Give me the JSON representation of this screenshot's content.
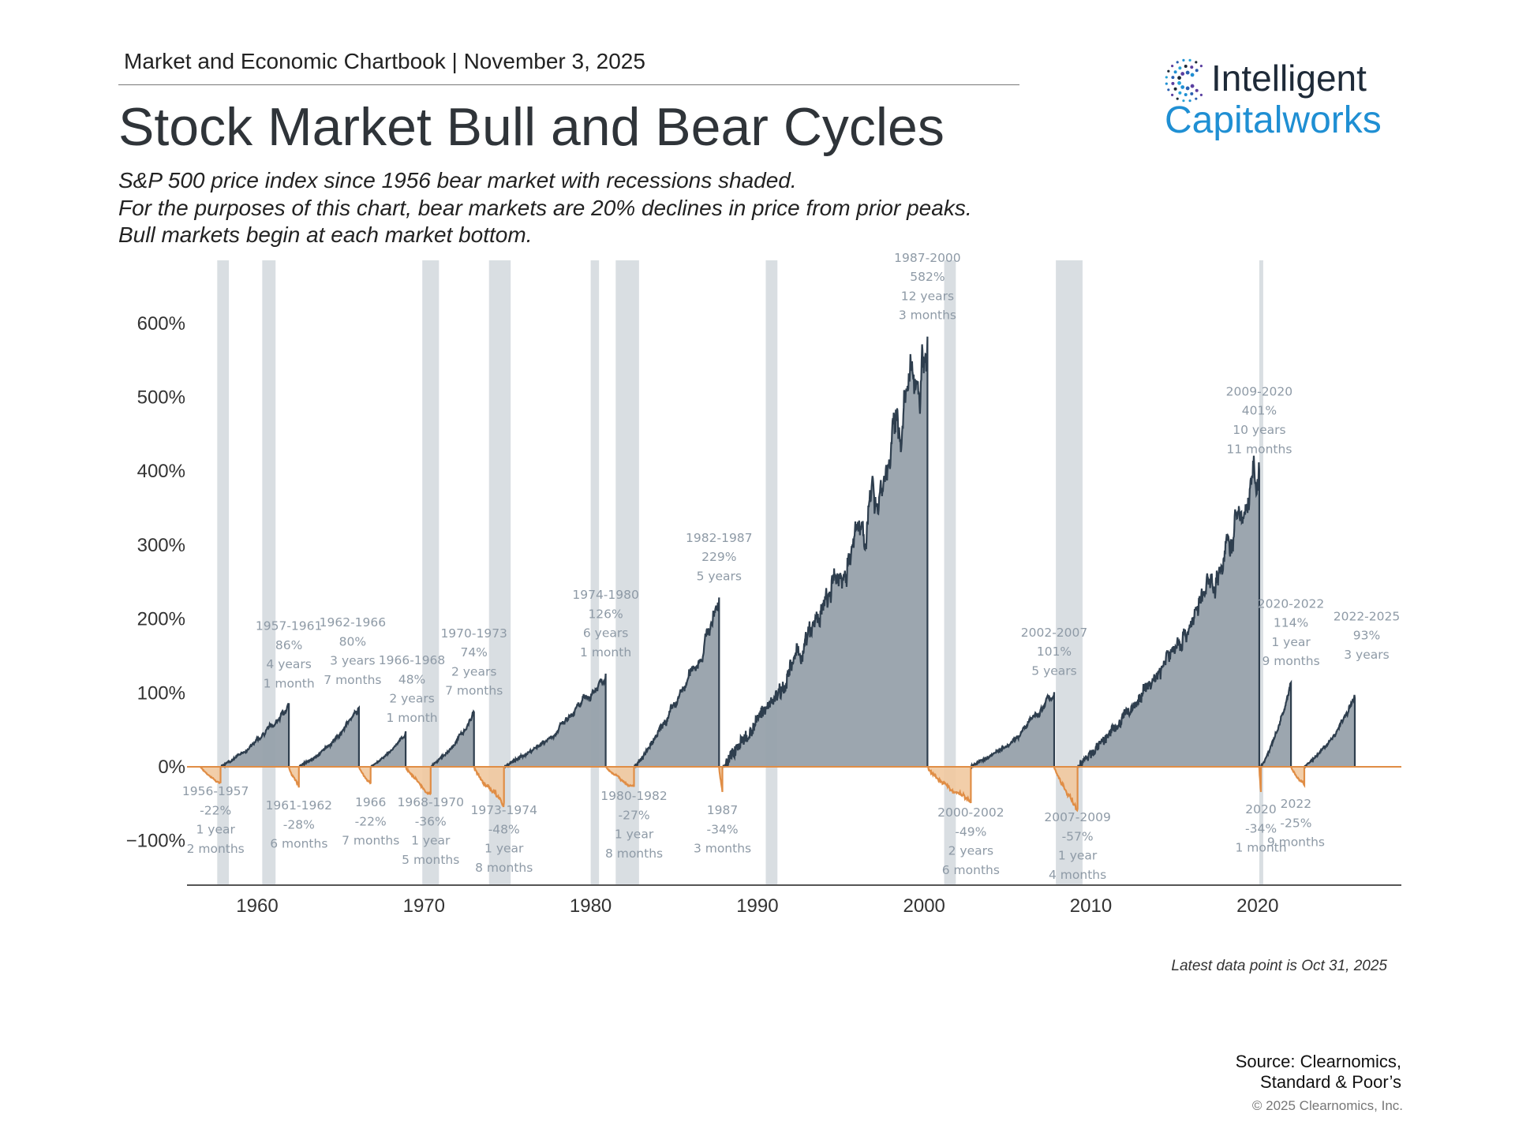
{
  "header": {
    "chartbook": "Market and Economic Chartbook | November 3, 2025"
  },
  "title": "Stock Market Bull and Bear Cycles",
  "subtitle": [
    "S&P 500 price index since 1956 bear market with recessions shaded.",
    "For the purposes of this chart, bear markets are 20% declines in price from prior peaks.",
    "Bull markets begin at each market bottom."
  ],
  "logo": {
    "line1": "Intelligent",
    "line2": "Capitalworks",
    "colors": {
      "dark": "#1e2a38",
      "blue": "#1f8fd3"
    }
  },
  "footer": {
    "latest": "Latest data point is Oct 31, 2025",
    "source1": "Source: Clearnomics,",
    "source2": "Standard & Poor’s",
    "copyright": "© 2025 Clearnomics, Inc."
  },
  "chart_data": {
    "type": "area",
    "xlim": [
      1955.6,
      2028.5
    ],
    "ylim": [
      -160,
      660
    ],
    "y_ticks": [
      {
        "v": 600,
        "label": "600%"
      },
      {
        "v": 500,
        "label": "500%"
      },
      {
        "v": 400,
        "label": "400%"
      },
      {
        "v": 300,
        "label": "300%"
      },
      {
        "v": 200,
        "label": "200%"
      },
      {
        "v": 100,
        "label": "100%"
      },
      {
        "v": 0,
        "label": "0%"
      },
      {
        "v": -100,
        "label": "−100%"
      }
    ],
    "x_ticks": [
      {
        "v": 1960,
        "label": "1960"
      },
      {
        "v": 1970,
        "label": "1970"
      },
      {
        "v": 1980,
        "label": "1980"
      },
      {
        "v": 1990,
        "label": "1990"
      },
      {
        "v": 2000,
        "label": "2000"
      },
      {
        "v": 2010,
        "label": "2010"
      },
      {
        "v": 2020,
        "label": "2020"
      }
    ],
    "colors": {
      "bull_fill": "#97a1ab",
      "bull_line": "#2e3e4e",
      "bear_fill": "#f1c9a0",
      "bear_line": "#e08d45",
      "recession": "#d9dee2",
      "annotation": "#8e9aa6"
    },
    "recessions": [
      [
        1957.6,
        1958.3
      ],
      [
        1960.3,
        1961.1
      ],
      [
        1969.9,
        1970.9
      ],
      [
        1973.9,
        1975.2
      ],
      [
        1980.0,
        1980.5
      ],
      [
        1981.5,
        1982.9
      ],
      [
        1990.5,
        1991.2
      ],
      [
        2001.2,
        2001.9
      ],
      [
        2007.9,
        2009.5
      ],
      [
        2020.1,
        2020.3
      ]
    ],
    "bull_markets": [
      {
        "start": 1957.8,
        "end": 1961.9,
        "gain": 86,
        "label": [
          "1957-1961",
          "86%",
          "4 years",
          "1 month"
        ]
      },
      {
        "start": 1962.5,
        "end": 1966.1,
        "gain": 80,
        "label": [
          "1962-1966",
          "80%",
          "3 years",
          "7 months"
        ]
      },
      {
        "start": 1966.8,
        "end": 1968.9,
        "gain": 48,
        "label": [
          "1966-1968",
          "48%",
          "2 years",
          "1 month"
        ]
      },
      {
        "start": 1970.4,
        "end": 1973.0,
        "gain": 74,
        "label": [
          "1970-1973",
          "74%",
          "2 years",
          "7 months"
        ]
      },
      {
        "start": 1974.8,
        "end": 1980.9,
        "gain": 126,
        "label": [
          "1974-1980",
          "126%",
          "6 years",
          "1 month"
        ]
      },
      {
        "start": 1982.6,
        "end": 1987.7,
        "gain": 229,
        "label": [
          "1982-1987",
          "229%",
          "5 years"
        ]
      },
      {
        "start": 1987.9,
        "end": 2000.2,
        "gain": 582,
        "label": [
          "1987-2000",
          "582%",
          "12 years",
          "3 months"
        ]
      },
      {
        "start": 2002.8,
        "end": 2007.8,
        "gain": 101,
        "label": [
          "2002-2007",
          "101%",
          "5 years"
        ]
      },
      {
        "start": 2009.2,
        "end": 2020.1,
        "gain": 401,
        "label": [
          "2009-2020",
          "401%",
          "10 years",
          "11 months"
        ]
      },
      {
        "start": 2020.2,
        "end": 2022.0,
        "gain": 114,
        "label": [
          "2020-2022",
          "114%",
          "1 year",
          "9 months"
        ]
      },
      {
        "start": 2022.8,
        "end": 2025.83,
        "gain": 93,
        "label": [
          "2022-2025",
          "93%",
          "3 years"
        ]
      }
    ],
    "bear_markets": [
      {
        "start": 1956.6,
        "end": 1957.8,
        "decline": -22,
        "label": [
          "1956-1957",
          "-22%",
          "1 year",
          "2 months"
        ]
      },
      {
        "start": 1961.9,
        "end": 1962.5,
        "decline": -28,
        "label": [
          "1961-1962",
          "-28%",
          "6 months"
        ]
      },
      {
        "start": 1966.1,
        "end": 1966.8,
        "decline": -22,
        "label": [
          "1966",
          "-22%",
          "7 months"
        ]
      },
      {
        "start": 1968.9,
        "end": 1970.4,
        "decline": -36,
        "label": [
          "1968-1970",
          "-36%",
          "1 year",
          "5 months"
        ]
      },
      {
        "start": 1973.0,
        "end": 1974.8,
        "decline": -48,
        "label": [
          "1973-1974",
          "-48%",
          "1 year",
          "8 months"
        ]
      },
      {
        "start": 1980.9,
        "end": 1982.6,
        "decline": -27,
        "label": [
          "1980-1982",
          "-27%",
          "1 year",
          "8 months"
        ]
      },
      {
        "start": 1987.7,
        "end": 1987.9,
        "decline": -34,
        "label": [
          "1987",
          "-34%",
          "3 months"
        ]
      },
      {
        "start": 2000.2,
        "end": 2002.8,
        "decline": -49,
        "label": [
          "2000-2002",
          "-49%",
          "2 years",
          "6 months"
        ]
      },
      {
        "start": 2007.8,
        "end": 2009.2,
        "decline": -57,
        "label": [
          "2007-2009",
          "-57%",
          "1 year",
          "4 months"
        ]
      },
      {
        "start": 2020.1,
        "end": 2020.2,
        "decline": -34,
        "label": [
          "2020",
          "-34%",
          "1 month"
        ]
      },
      {
        "start": 2022.0,
        "end": 2022.8,
        "decline": -25,
        "label": [
          "2022",
          "-25%",
          "9 months"
        ]
      }
    ]
  }
}
